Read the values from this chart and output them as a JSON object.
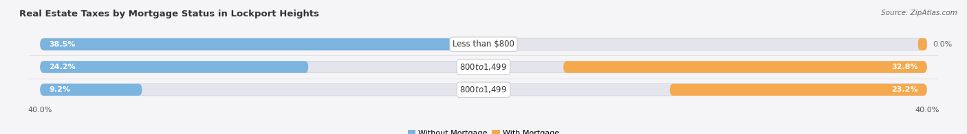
{
  "title": "Real Estate Taxes by Mortgage Status in Lockport Heights",
  "source": "Source: ZipAtlas.com",
  "categories": [
    "Less than $800",
    "$800 to $1,499",
    "$800 to $1,499"
  ],
  "without_mortgage": [
    38.5,
    24.2,
    9.2
  ],
  "with_mortgage": [
    0.0,
    32.8,
    23.2
  ],
  "without_mortgage_label": "Without Mortgage",
  "with_mortgage_label": "With Mortgage",
  "xlim": 40.0,
  "color_without": "#7ab4df",
  "color_with": "#f5a94e",
  "color_bg_bar": "#e4e4ec",
  "color_bg_fig": "#f5f5f8",
  "bar_height": 0.52,
  "title_fontsize": 9.5,
  "source_fontsize": 7.5,
  "label_fontsize": 8,
  "tick_fontsize": 8,
  "category_fontsize": 8.5
}
